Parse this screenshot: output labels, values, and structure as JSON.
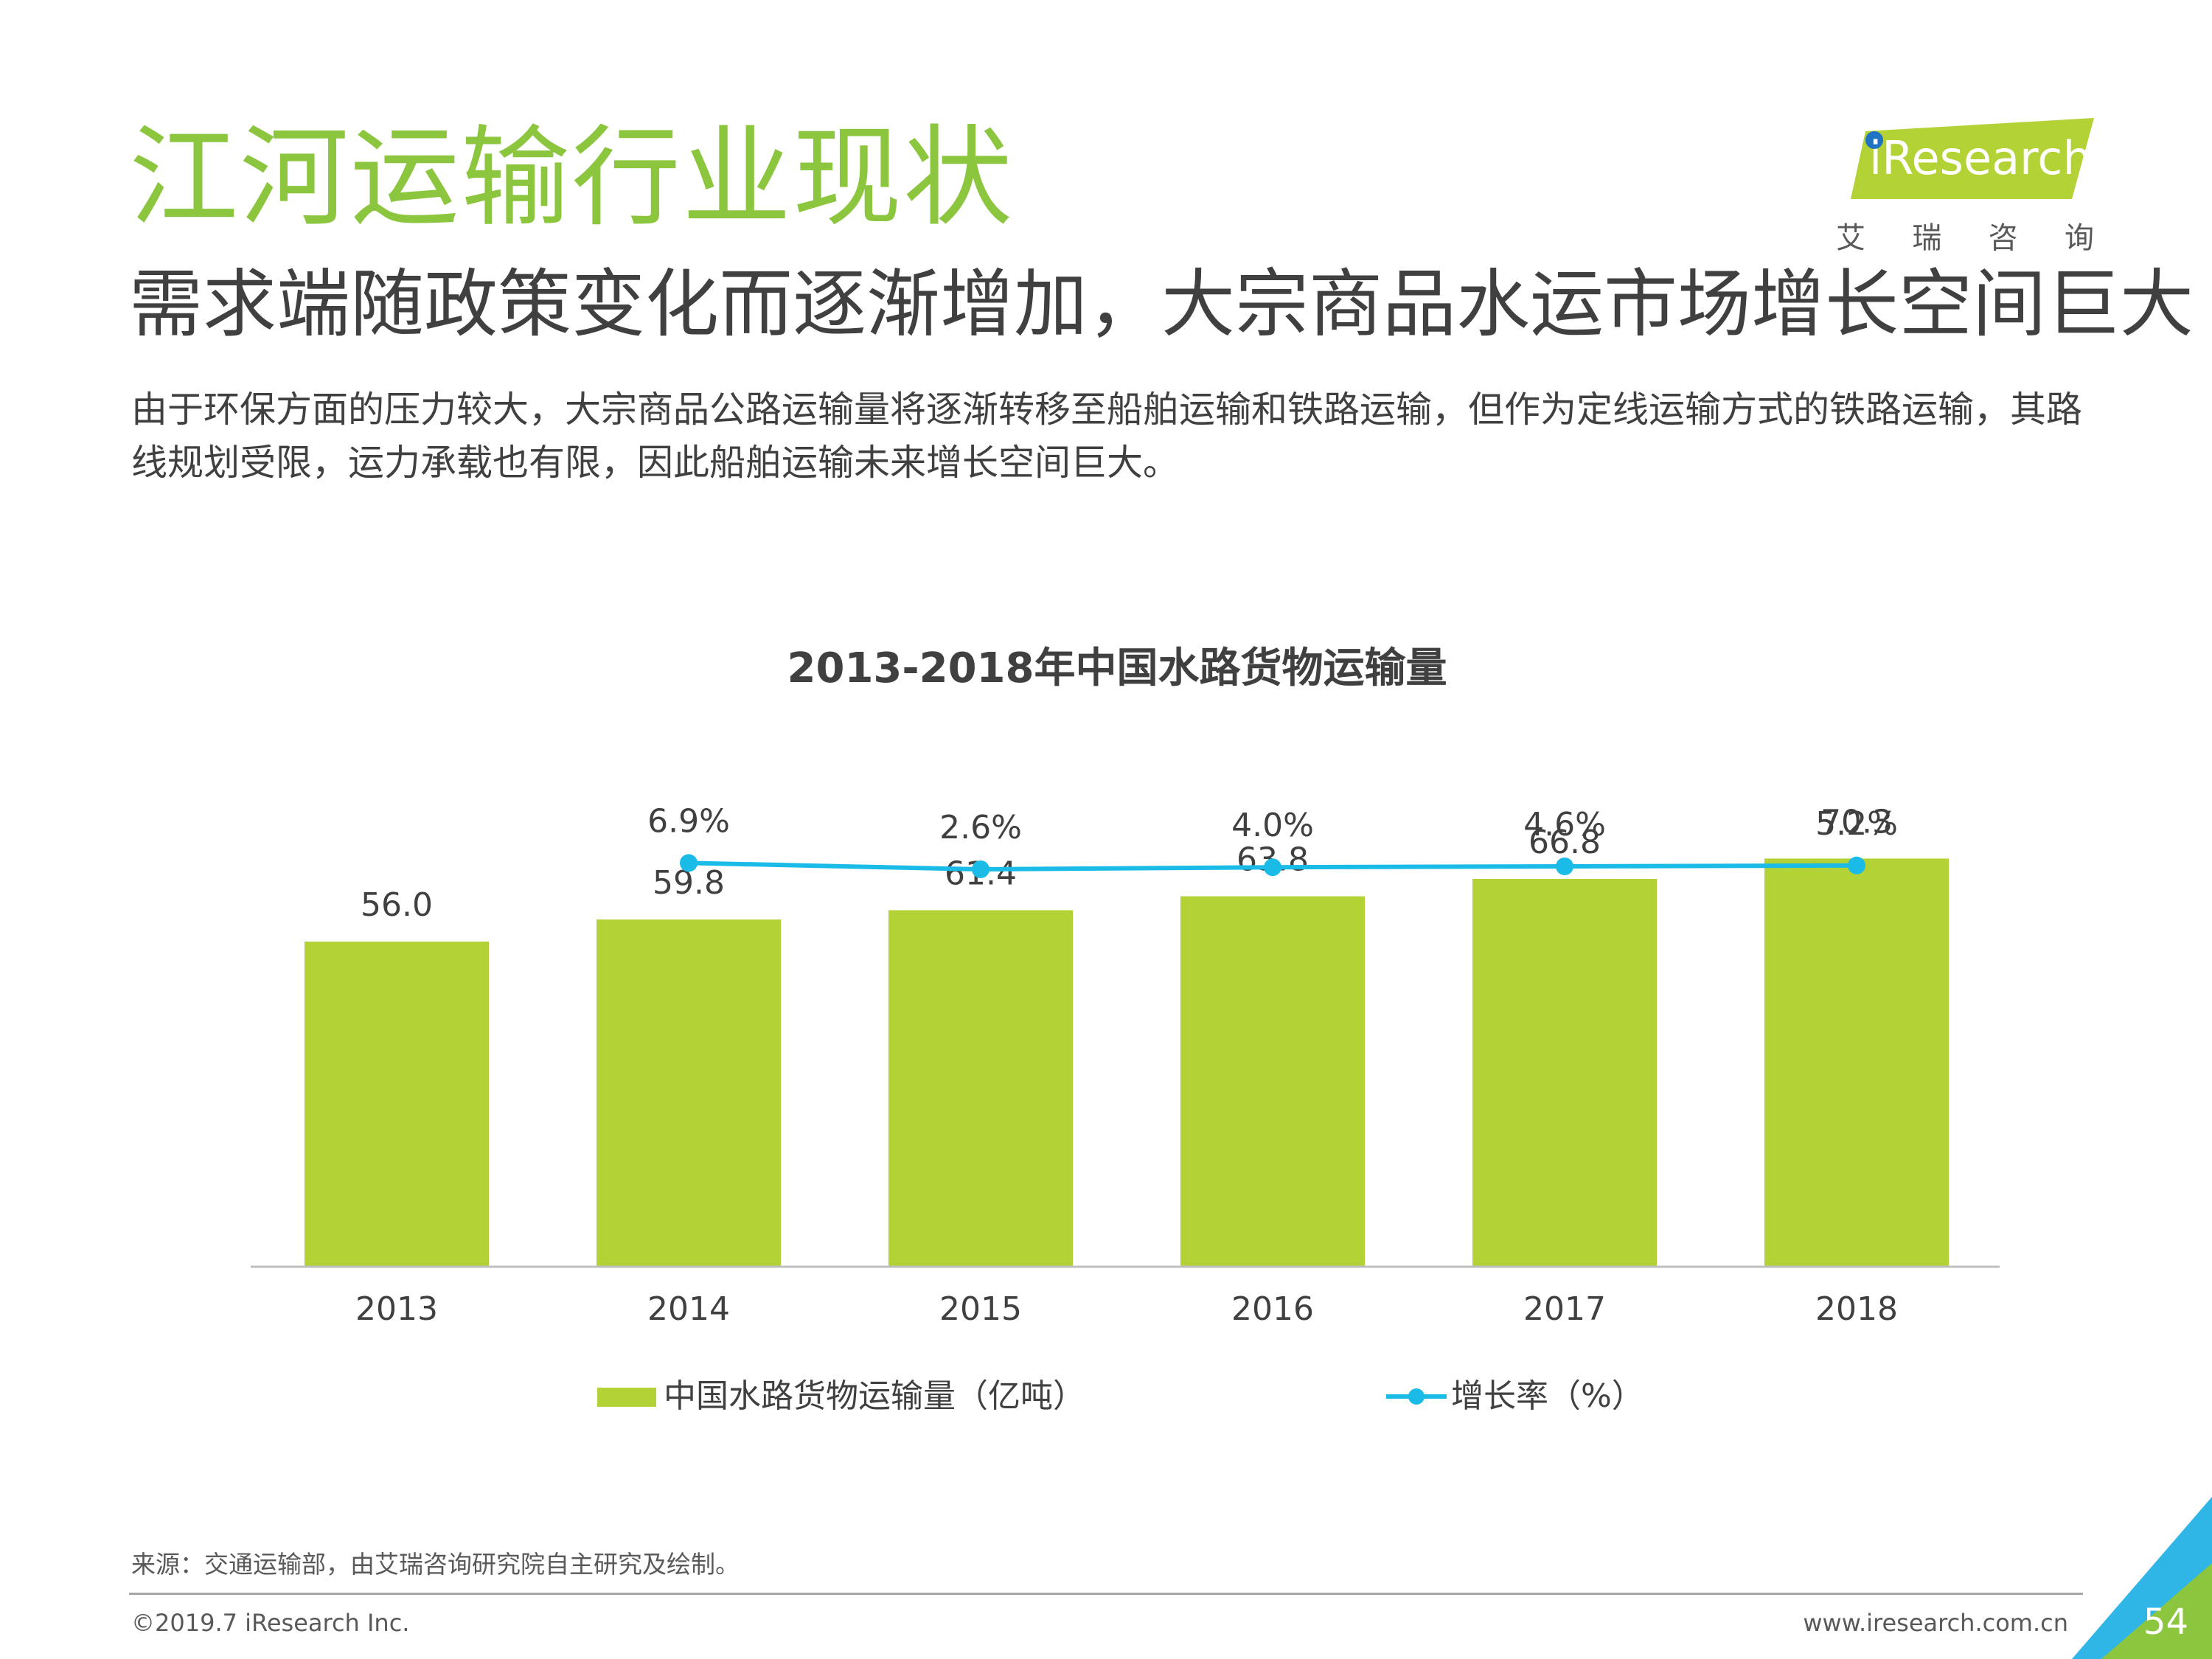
{
  "header": {
    "title": "江河运输行业现状",
    "subtitle": "需求端随政策变化而逐渐增加，大宗商品水运市场增长空间巨大",
    "description": "由于环保方面的压力较大，大宗商品公路运输量将逐渐转移至船舶运输和铁路运输，但作为定线运输方式的铁路运输，其路线规划受限，运力承载也有限，因此船舶运输未来增长空间巨大。"
  },
  "logo": {
    "brand": "iResearch",
    "chars": [
      "艾",
      "瑞",
      "咨",
      "询"
    ]
  },
  "chart_data": {
    "type": "bar",
    "title": "2013-2018年中国水路货物运输量",
    "categories": [
      "2013",
      "2014",
      "2015",
      "2016",
      "2017",
      "2018"
    ],
    "series": [
      {
        "name": "中国水路货物运输量（亿吨）",
        "type": "bar",
        "values": [
          56.0,
          59.8,
          61.4,
          63.8,
          66.8,
          70.3
        ],
        "labels": [
          "56.0",
          "59.8",
          "61.4",
          "63.8",
          "66.8",
          "70.3"
        ],
        "color": "#b2d235"
      },
      {
        "name": "增长率（%）",
        "type": "line",
        "values": [
          null,
          6.9,
          2.6,
          4.0,
          4.6,
          5.2
        ],
        "labels": [
          "",
          "6.9%",
          "2.6%",
          "4.0%",
          "4.6%",
          "5.2%"
        ],
        "color": "#1bbbe8"
      }
    ],
    "legend_position": "bottom",
    "grid": false
  },
  "footer": {
    "source": "来源：交通运输部，由艾瑞咨询研究院自主研究及绘制。",
    "copyright": "©2019.7 iResearch Inc.",
    "website": "www.iresearch.com.cn",
    "page": "54"
  },
  "colors": {
    "accent_green": "#8cc63f",
    "bar_green": "#b2d235",
    "line_blue": "#1bbbe8",
    "corner_blue": "#2fb5e6"
  }
}
